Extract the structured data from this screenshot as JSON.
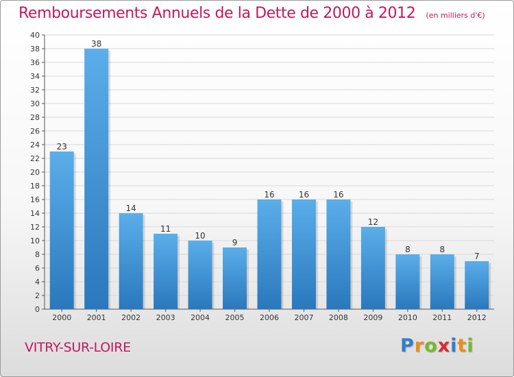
{
  "header": {
    "title": "Remboursements Annuels de la Dette de 2000 à 2012",
    "subtitle": "(en milliers d'€)"
  },
  "footer": {
    "city": "VITRY-SUR-LOIRE",
    "brand": "Proxiti",
    "brand_letters": [
      {
        "ch": "P",
        "color": "#2e7fd0"
      },
      {
        "ch": "r",
        "color": "#f08a1c"
      },
      {
        "ch": "o",
        "color": "#78b829"
      },
      {
        "ch": "x",
        "color": "#e3262e"
      },
      {
        "ch": "i",
        "color": "#2e7fd0"
      },
      {
        "ch": "t",
        "color": "#f08a1c"
      },
      {
        "ch": "i",
        "color": "#78b829"
      }
    ]
  },
  "colors": {
    "title": "#c2185b",
    "bar_top": "#5aaee9",
    "bar_bottom": "#2a78bd",
    "grid": "#d8d8d8"
  },
  "chart_data": {
    "type": "bar",
    "title": "Remboursements Annuels de la Dette de 2000 à 2012",
    "subtitle": "(en milliers d'€)",
    "categories": [
      "2000",
      "2001",
      "2002",
      "2003",
      "2004",
      "2005",
      "2006",
      "2007",
      "2008",
      "2009",
      "2010",
      "2011",
      "2012"
    ],
    "values": [
      23,
      38,
      14,
      11,
      10,
      9,
      16,
      16,
      16,
      12,
      8,
      8,
      7
    ],
    "ylim": [
      0,
      40
    ],
    "yticks": [
      0,
      2,
      4,
      6,
      8,
      10,
      12,
      14,
      16,
      18,
      20,
      22,
      24,
      26,
      28,
      30,
      32,
      34,
      36,
      38,
      40
    ],
    "grid": true,
    "legend": "none",
    "data_labels": true
  }
}
